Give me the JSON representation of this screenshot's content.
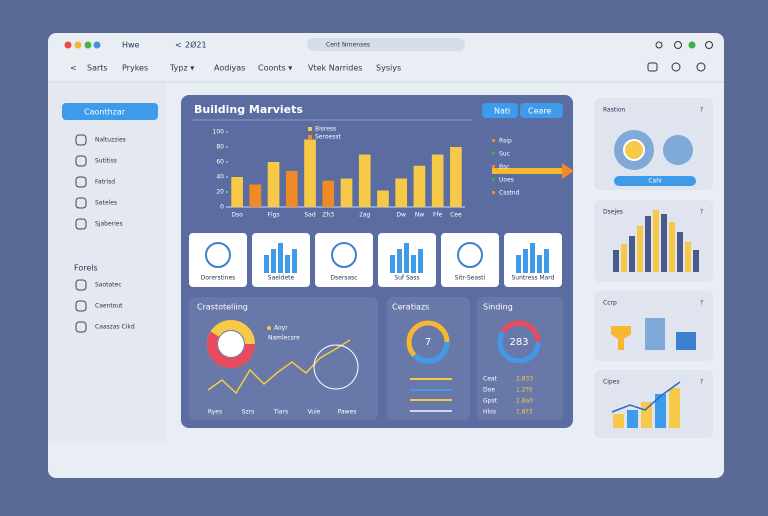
{
  "topbar": {
    "tab": "Hwe",
    "back": "2Ø21",
    "search": "Cent Nrnenses"
  },
  "nav": [
    "Sarts",
    "Prykes",
    "Typz ▾",
    "Aodiyas",
    "Coonts ▾",
    "Vtek Narrides",
    "Sysiys"
  ],
  "sidebar": {
    "button": "Caonthzar",
    "items": [
      "Naltuzzies",
      "Sutitiss",
      "Fatrisd",
      "Sateles",
      "Sjaberies"
    ],
    "section": "Forels",
    "items2": [
      "Saotatec",
      "Caentout",
      "Caaszas Cikd"
    ]
  },
  "panel": {
    "title": "Building Marviets",
    "buttons": [
      "Nati",
      "Ceare"
    ],
    "arrow_labels": [
      "Rsip",
      "Suc",
      "Bsc",
      "Uoes",
      "Csstnd"
    ],
    "cards": [
      "Dorerstines",
      "Saeldete",
      "Dsersasc",
      "Suf Sass",
      "Sitr-Seasti",
      "Suntress Mard"
    ],
    "left": {
      "title": "Crastoteliing",
      "legend": [
        "Aoyr",
        "Namlecsre"
      ],
      "x": [
        "Ryes",
        "Szrs",
        "Tiars",
        "Vuie",
        "Pawes"
      ]
    },
    "middle": {
      "title": "Ceratiazs",
      "center": "7"
    },
    "right": {
      "title": "Sinding",
      "center": "283",
      "rows": [
        [
          "Ceat",
          "2.833"
        ],
        [
          "Doe",
          "1.2?0"
        ],
        [
          "Gpst",
          "2.8a0"
        ],
        [
          "Hlos",
          "1.8?3"
        ]
      ]
    }
  },
  "chart_data": {
    "type": "bar",
    "categories": [
      "Dso",
      null,
      "Flgs",
      null,
      "Sad",
      "Zh3",
      null,
      "2ag",
      null,
      "Dw",
      "Nw",
      "Ffe",
      "Cee"
    ],
    "series": [
      {
        "name": "Bisress",
        "color": "#f7c948",
        "values": [
          40,
          null,
          60,
          null,
          90,
          null,
          38,
          70,
          22,
          38,
          55,
          70,
          80
        ]
      },
      {
        "name": "Seroesst",
        "color": "#f08a24",
        "values": [
          null,
          30,
          null,
          48,
          null,
          35,
          null,
          null,
          null,
          null,
          null,
          null,
          null
        ]
      }
    ],
    "ylim": [
      0,
      100
    ],
    "yticks": [
      0,
      20,
      40,
      60,
      80,
      100
    ]
  },
  "rightcol": {
    "titles": [
      "Rastion",
      "Dsejes",
      "Ccrp",
      "Cipes"
    ],
    "button": "Cahi"
  }
}
